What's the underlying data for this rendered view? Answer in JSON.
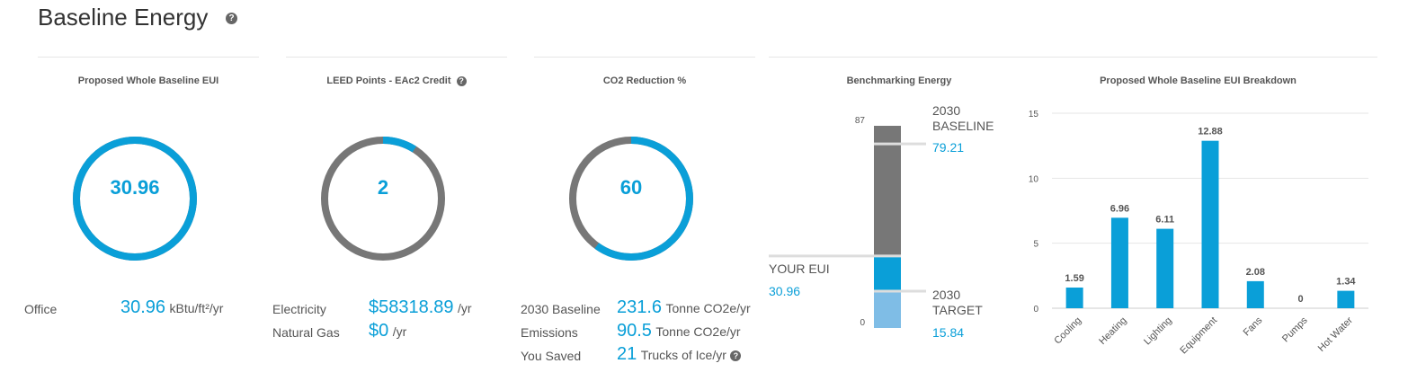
{
  "header": {
    "title": "Baseline Energy",
    "help_icon": "?"
  },
  "eui_panel": {
    "title": "Proposed Whole Baseline EUI",
    "ring_value": "30.96",
    "ring_fraction": 1.0,
    "row_label": "Office",
    "row_value": "30.96",
    "row_unit": "kBtu/ft²/yr"
  },
  "leed_panel": {
    "title": "LEED Points - EAc2 Credit",
    "ring_value": "2",
    "ring_fraction": 0.09,
    "rows": [
      {
        "label": "Electricity",
        "value": "$58318.89",
        "unit": "/yr"
      },
      {
        "label": "Natural Gas",
        "value": "$0",
        "unit": "/yr"
      }
    ]
  },
  "co2_panel": {
    "title": "CO2 Reduction %",
    "ring_value": "60",
    "ring_fraction": 0.6,
    "rows": [
      {
        "label": "2030 Baseline",
        "value": "231.6",
        "unit": "Tonne CO2e/yr"
      },
      {
        "label": "Emissions",
        "value": "90.5",
        "unit": "Tonne CO2e/yr"
      },
      {
        "label": "You Saved",
        "value": "21",
        "unit": "Trucks of Ice/yr"
      }
    ]
  },
  "benchmark_panel": {
    "title": "Benchmarking Energy",
    "axis_max": "87",
    "axis_min": "0",
    "baseline_label_1": "2030",
    "baseline_label_2": "BASELINE",
    "baseline_value": "79.21",
    "target_label_1": "2030",
    "target_label_2": "TARGET",
    "target_value": "15.84",
    "your_eui_label": "YOUR EUI",
    "your_eui_value": "30.96",
    "scale_max": 87,
    "baseline_num": 79.21,
    "your_num": 30.96,
    "target_num": 15.84
  },
  "breakdown_panel": {
    "title": "Proposed Whole Baseline EUI Breakdown"
  },
  "colors": {
    "accent": "#0a9fd8",
    "gray": "#777777",
    "light_blue": "#7fbde6"
  },
  "chart_data": {
    "type": "bar",
    "categories": [
      "Cooling",
      "Heating",
      "Lighting",
      "Equipment",
      "Fans",
      "Pumps",
      "Hot Water"
    ],
    "values": [
      1.59,
      6.96,
      6.11,
      12.88,
      2.08,
      0,
      1.34
    ],
    "value_labels": [
      "1.59",
      "6.96",
      "6.11",
      "12.88",
      "2.08",
      "0",
      "1.34"
    ],
    "yticks": [
      0,
      5,
      10,
      15
    ],
    "ylim": [
      0,
      15
    ],
    "grid": true,
    "title": "Proposed Whole Baseline EUI Breakdown"
  }
}
